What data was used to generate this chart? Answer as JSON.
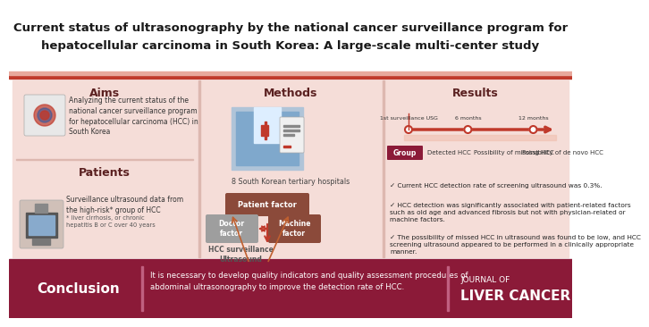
{
  "title_line1": "Current status of ultrasonography by the national cancer surveillance program for",
  "title_line2": "hepatocellular carcinoma in South Korea: A large-scale multi-center study",
  "title_bg": "#ffffff",
  "title_color": "#1a1a1a",
  "accent_bar_color": "#c0392b",
  "main_bg": "#f5ddd8",
  "panel_bg": "#f5ddd8",
  "section_bg": "#f5ddd8",
  "conclusion_bg": "#8b1a38",
  "conclusion_text_color": "#ffffff",
  "section_divider_color": "#c0392b",
  "aims_title": "Aims",
  "aims_text": "Analyzing the current status of the\nnational cancer surveillance program\nfor hepatocellular carcinoma (HCC) in\nSouth Korea",
  "patients_title": "Patients",
  "patients_text": "Surveillance ultrasound data from\nthe high-risk* group of HCC",
  "patients_footnote": "* liver cirrhosis, or chronic\nhepatitis B or C over 40 years",
  "methods_title": "Methods",
  "methods_subtitle": "8 South Korean tertiary hospitals",
  "patient_factor_label": "Patient factor",
  "patient_factor_color": "#8b4a3a",
  "hcc_label": "HCC surveillance\nUltrasound",
  "doctor_factor_label": "Doctor\nfactor",
  "doctor_factor_color": "#9e9e9e",
  "machine_factor_label": "Machine\nfactor",
  "machine_factor_color": "#8b4a3a",
  "results_title": "Results",
  "timeline_label1": "1st surveillance USG",
  "timeline_label2": "6 months",
  "timeline_label3": "12 months",
  "timeline_color": "#c0392b",
  "group_label": "Group",
  "group_bg": "#8b1a38",
  "detected_hcc": "Detected HCC",
  "possibility_missing": "Possibility of missing HCC",
  "possibility_denovo": "Possibility of de novo HCC",
  "result1": "✓ Current HCC detection rate of screening ultrasound was 0.3%.",
  "result2": "✓ HCC detection was significantly associated with patient-related factors\nsuch as old age and advanced fibrosis but not with physician-related or\nmachine factors.",
  "result3": "✓ The possibility of missed HCC in ultrasound was found to be low, and HCC\nscreening ultrasound appeared to be performed in a clinically appropriate\nmanner.",
  "conclusion_label": "Conclusion",
  "conclusion_text": "It is necessary to develop quality indicators and quality assessment procedures of\nabdominal ultrasonography to improve the detection rate of HCC.",
  "journal_line1": "JOURNAL OF",
  "journal_line2": "LIVER CANCER",
  "divider_color": "#ffffff"
}
